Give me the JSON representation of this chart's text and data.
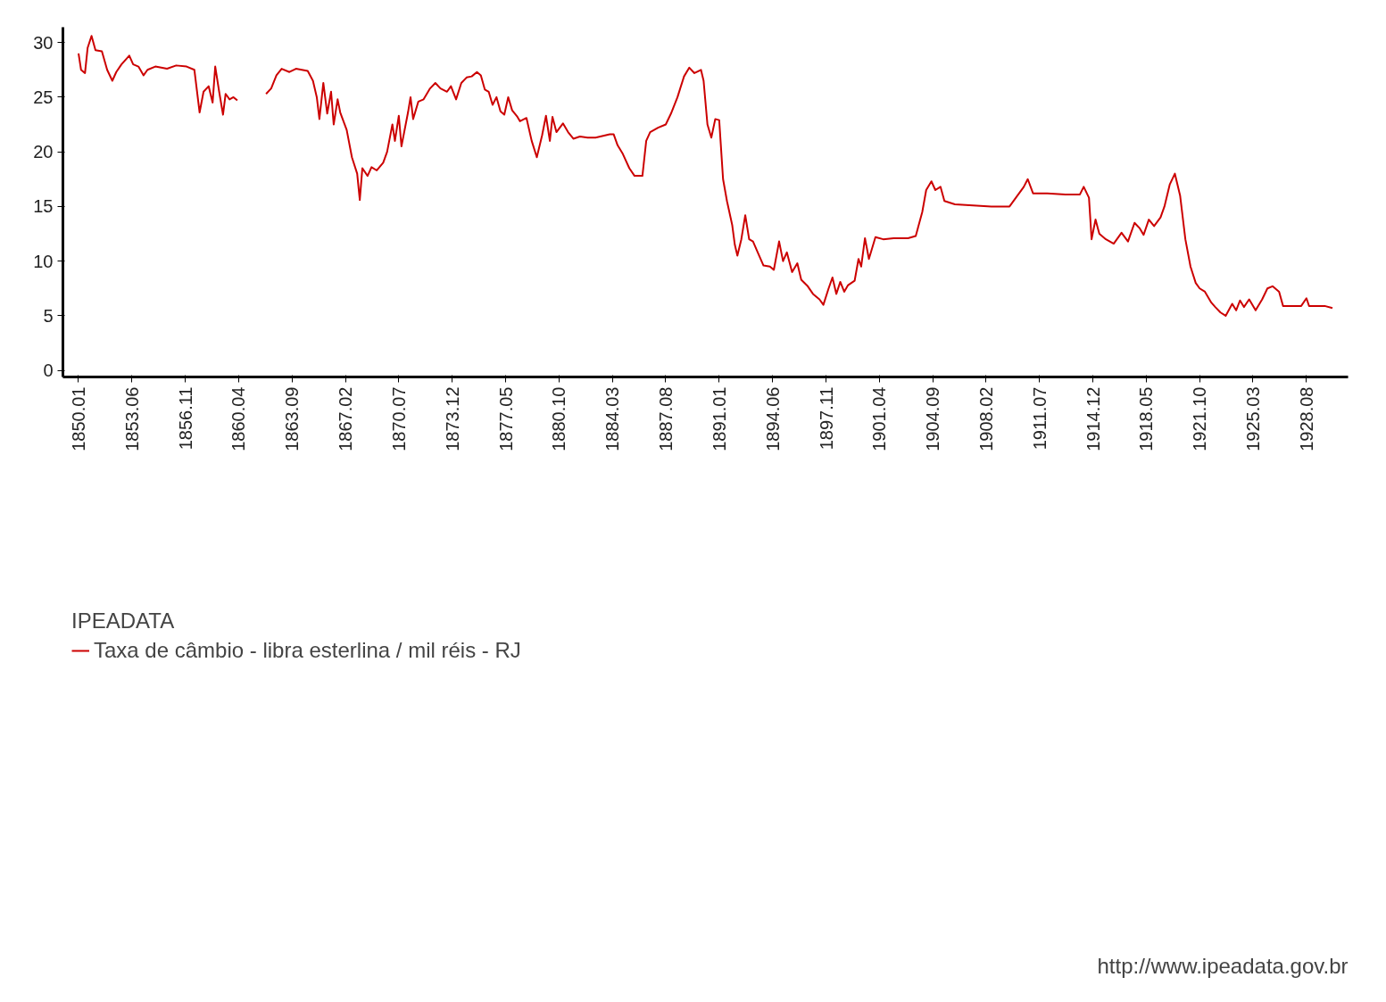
{
  "chart_data": {
    "type": "line",
    "legend_title": "IPEADATA",
    "legend": "bottom left",
    "grid": false,
    "marker": "none",
    "line_style": "solid",
    "annotations": [
      "http://www.ipeadata.gov.br"
    ],
    "xlim": [
      "1849-01",
      "1931-04"
    ],
    "xticks": [
      {
        "value": "1850-01",
        "label": "1850.01"
      },
      {
        "value": "1853-06",
        "label": "1853.06"
      },
      {
        "value": "1856-11",
        "label": "1856.11"
      },
      {
        "value": "1860-04",
        "label": "1860.04"
      },
      {
        "value": "1863-09",
        "label": "1863.09"
      },
      {
        "value": "1867-02",
        "label": "1867.02"
      },
      {
        "value": "1870-07",
        "label": "1870.07"
      },
      {
        "value": "1873-12",
        "label": "1873.12"
      },
      {
        "value": "1877-05",
        "label": "1877.05"
      },
      {
        "value": "1880-10",
        "label": "1880.10"
      },
      {
        "value": "1884-03",
        "label": "1884.03"
      },
      {
        "value": "1887-08",
        "label": "1887.08"
      },
      {
        "value": "1891-01",
        "label": "1891.01"
      },
      {
        "value": "1894-06",
        "label": "1894.06"
      },
      {
        "value": "1897-11",
        "label": "1897.11"
      },
      {
        "value": "1901-04",
        "label": "1901.04"
      },
      {
        "value": "1904-09",
        "label": "1904.09"
      },
      {
        "value": "1908-02",
        "label": "1908.02"
      },
      {
        "value": "1911-07",
        "label": "1911.07"
      },
      {
        "value": "1914-12",
        "label": "1914.12"
      },
      {
        "value": "1918-05",
        "label": "1918.05"
      },
      {
        "value": "1921-10",
        "label": "1921.10"
      },
      {
        "value": "1925-03",
        "label": "1925.03"
      },
      {
        "value": "1928-08",
        "label": "1928.08"
      }
    ],
    "ylim": [
      -0.6,
      31.4
    ],
    "yticks": [
      0,
      5,
      10,
      15,
      20,
      25,
      30
    ],
    "x": [
      "1850-01",
      "1850-03",
      "1850-06",
      "1850-08",
      "1850-11",
      "1851-02",
      "1851-07",
      "1851-11",
      "1852-03",
      "1852-06",
      "1852-10",
      "1853-04",
      "1853-07",
      "1853-11",
      "1854-03",
      "1854-06",
      "1854-12",
      "1855-09",
      "1856-04",
      "1856-12",
      "1857-06",
      "1857-10",
      "1858-01",
      "1858-05",
      "1858-08",
      "1858-10",
      "1859-01",
      "1859-04",
      "1859-06",
      "1859-09",
      "1859-12",
      "1860-03",
      "1861-01",
      "1862-01",
      "1862-05",
      "1862-09",
      "1863-01",
      "1863-07",
      "1863-12",
      "1864-09",
      "1865-01",
      "1865-04",
      "1865-06",
      "1865-09",
      "1865-12",
      "1866-03",
      "1866-05",
      "1866-08",
      "1866-10",
      "1867-03",
      "1867-07",
      "1867-11",
      "1868-01",
      "1868-03",
      "1868-07",
      "1868-10",
      "1869-02",
      "1869-07",
      "1869-10",
      "1870-02",
      "1870-04",
      "1870-07",
      "1870-09",
      "1871-02",
      "1871-04",
      "1871-06",
      "1871-10",
      "1872-02",
      "1872-07",
      "1872-11",
      "1873-03",
      "1873-08",
      "1873-11",
      "1874-03",
      "1874-07",
      "1874-11",
      "1875-03",
      "1875-07",
      "1875-10",
      "1876-01",
      "1876-04",
      "1876-07",
      "1876-10",
      "1877-01",
      "1877-04",
      "1877-07",
      "1877-10",
      "1878-02",
      "1878-04",
      "1878-09",
      "1879-01",
      "1879-05",
      "1879-09",
      "1879-12",
      "1880-03",
      "1880-05",
      "1880-08",
      "1881-01",
      "1881-05",
      "1881-09",
      "1882-02",
      "1882-08",
      "1883-02",
      "1884-01",
      "1884-04",
      "1884-07",
      "1884-11",
      "1885-04",
      "1885-08",
      "1886-02",
      "1886-05",
      "1886-08",
      "1887-02",
      "1887-08",
      "1887-12",
      "1888-05",
      "1888-10",
      "1889-02",
      "1889-06",
      "1889-11",
      "1890-01",
      "1890-04",
      "1890-07",
      "1890-10",
      "1891-01",
      "1891-04",
      "1891-07",
      "1891-11",
      "1892-01",
      "1892-03",
      "1892-06",
      "1892-09",
      "1892-12",
      "1893-03",
      "1893-07",
      "1893-11",
      "1894-04",
      "1894-07",
      "1894-11",
      "1895-02",
      "1895-05",
      "1895-09",
      "1896-01",
      "1896-04",
      "1896-09",
      "1897-01",
      "1897-06",
      "1897-09",
      "1898-01",
      "1898-04",
      "1898-07",
      "1898-10",
      "1899-01",
      "1899-04",
      "1899-09",
      "1899-12",
      "1900-02",
      "1900-05",
      "1900-08",
      "1901-01",
      "1901-07",
      "1902-03",
      "1903-02",
      "1903-08",
      "1904-01",
      "1904-04",
      "1904-08",
      "1904-11",
      "1905-03",
      "1905-06",
      "1906-02",
      "1907-04",
      "1908-06",
      "1909-08",
      "1910-07",
      "1910-10",
      "1911-02",
      "1912-01",
      "1913-03",
      "1914-02",
      "1914-05",
      "1914-09",
      "1914-11",
      "1915-02",
      "1915-05",
      "1915-10",
      "1916-04",
      "1916-10",
      "1917-03",
      "1917-08",
      "1917-12",
      "1918-03",
      "1918-07",
      "1918-11",
      "1919-04",
      "1919-07",
      "1919-11",
      "1920-03",
      "1920-07",
      "1920-11",
      "1921-03",
      "1921-07",
      "1921-10",
      "1922-02",
      "1922-07",
      "1922-10",
      "1923-02",
      "1923-06",
      "1923-11",
      "1924-02",
      "1924-05",
      "1924-08",
      "1924-12",
      "1925-05",
      "1925-10",
      "1926-02",
      "1926-06",
      "1926-11",
      "1927-02",
      "1927-09",
      "1928-04",
      "1928-08",
      "1928-10",
      "1929-10",
      "1930-04"
    ],
    "series": [
      {
        "name": "Taxa de câmbio - libra esterlina / mil réis - RJ",
        "color": "#cc0000",
        "values": [
          29.0,
          27.5,
          27.2,
          29.5,
          30.6,
          29.3,
          29.2,
          27.5,
          26.5,
          27.3,
          28.0,
          28.8,
          28.0,
          27.8,
          27.0,
          27.5,
          27.8,
          27.6,
          27.9,
          27.8,
          27.5,
          23.6,
          25.5,
          26.0,
          24.5,
          27.8,
          25.5,
          23.4,
          25.3,
          24.8,
          25.0,
          24.7,
          null,
          25.3,
          25.8,
          27.0,
          27.6,
          27.3,
          27.6,
          27.4,
          26.5,
          25.0,
          23.0,
          26.3,
          23.5,
          25.5,
          22.5,
          24.8,
          23.6,
          22.0,
          19.5,
          18.0,
          15.6,
          18.5,
          17.8,
          18.6,
          18.3,
          19.0,
          20.0,
          22.5,
          21.0,
          23.3,
          20.5,
          23.6,
          25.0,
          23.0,
          24.6,
          24.8,
          25.8,
          26.3,
          25.8,
          25.5,
          26.0,
          24.8,
          26.3,
          26.8,
          26.9,
          27.3,
          27.0,
          25.7,
          25.5,
          24.3,
          25.0,
          23.7,
          23.4,
          25.0,
          23.8,
          23.2,
          22.8,
          23.1,
          21.0,
          19.5,
          21.5,
          23.3,
          21.0,
          23.2,
          21.8,
          22.6,
          21.8,
          21.2,
          21.4,
          21.3,
          21.3,
          21.6,
          21.6,
          20.6,
          19.8,
          18.5,
          17.8,
          17.8,
          21.0,
          21.8,
          22.2,
          22.5,
          23.5,
          25.0,
          26.9,
          27.7,
          27.2,
          27.5,
          26.5,
          22.5,
          21.3,
          23.0,
          22.9,
          17.5,
          15.5,
          13.3,
          11.5,
          10.5,
          12.0,
          14.2,
          12.0,
          11.8,
          10.7,
          9.6,
          9.5,
          9.2,
          11.8,
          10.0,
          10.8,
          9.0,
          9.8,
          8.3,
          7.7,
          7.0,
          6.5,
          6.0,
          7.5,
          8.5,
          7.0,
          8.1,
          7.2,
          7.8,
          8.2,
          10.2,
          9.5,
          12.1,
          10.2,
          12.2,
          12.0,
          12.1,
          12.1,
          12.3,
          14.5,
          16.5,
          17.3,
          16.5,
          16.8,
          15.5,
          15.2,
          15.1,
          15.0,
          15.0,
          16.8,
          17.5,
          16.2,
          16.2,
          16.1,
          16.1,
          16.8,
          15.8,
          12.0,
          13.8,
          12.5,
          12.0,
          11.6,
          12.6,
          11.8,
          13.5,
          13.0,
          12.4,
          13.8,
          13.2,
          14.0,
          15.0,
          17.0,
          18.0,
          16.0,
          12.0,
          9.5,
          8.0,
          7.5,
          7.2,
          6.2,
          5.8,
          5.3,
          5.0,
          6.1,
          5.5,
          6.4,
          5.8,
          6.5,
          5.5,
          6.5,
          7.5,
          7.7,
          7.2,
          5.9,
          5.9,
          5.9,
          6.6,
          5.9,
          5.9,
          5.7
        ]
      }
    ]
  }
}
